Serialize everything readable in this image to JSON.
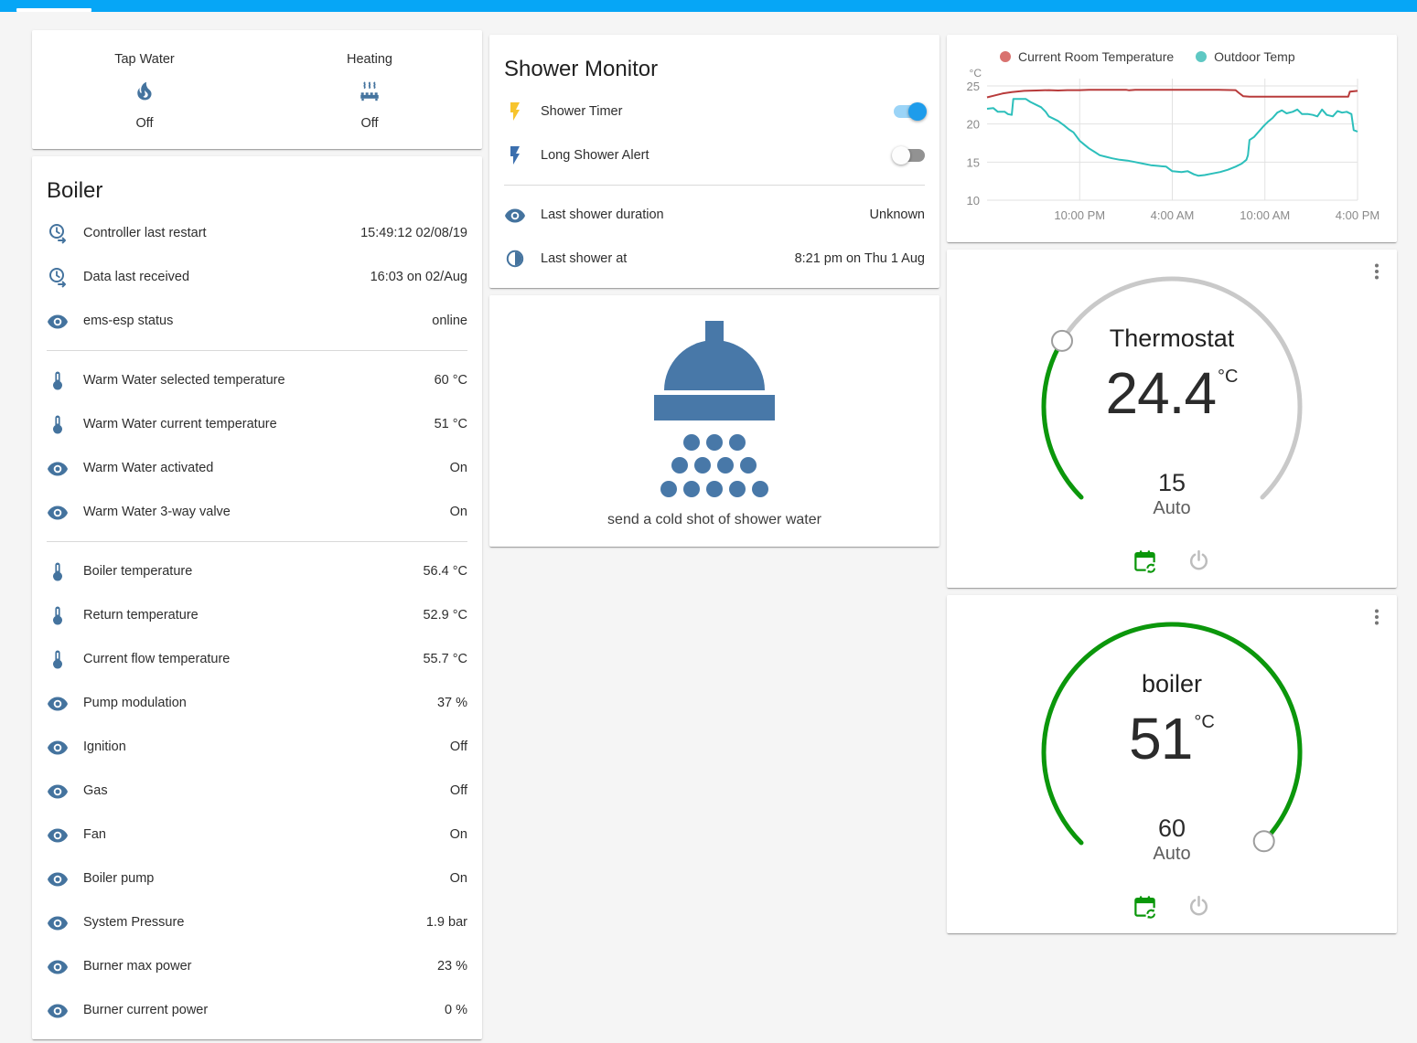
{
  "glance": {
    "items": [
      {
        "icon": "fire",
        "label": "Tap Water",
        "state": "Off"
      },
      {
        "icon": "radiator",
        "label": "Heating",
        "state": "Off"
      }
    ]
  },
  "boiler_card": {
    "title": "Boiler",
    "rows": [
      {
        "icon": "clock-start",
        "label": "Controller last restart",
        "value": "15:49:12 02/08/19"
      },
      {
        "icon": "clock-start",
        "label": "Data last received",
        "value": "16:03 on 02/Aug"
      },
      {
        "icon": "eye",
        "label": "ems-esp status",
        "value": "online"
      },
      {
        "icon": "thermometer",
        "label": "Warm Water selected temperature",
        "value": "60 °C"
      },
      {
        "icon": "thermometer",
        "label": "Warm Water current temperature",
        "value": "51 °C"
      },
      {
        "icon": "eye",
        "label": "Warm Water activated",
        "value": "On"
      },
      {
        "icon": "eye",
        "label": "Warm Water 3-way valve",
        "value": "On"
      },
      {
        "icon": "thermometer",
        "label": "Boiler temperature",
        "value": "56.4 °C"
      },
      {
        "icon": "thermometer",
        "label": "Return temperature",
        "value": "52.9 °C"
      },
      {
        "icon": "thermometer",
        "label": "Current flow temperature",
        "value": "55.7 °C"
      },
      {
        "icon": "eye",
        "label": "Pump modulation",
        "value": "37 %"
      },
      {
        "icon": "eye",
        "label": "Ignition",
        "value": "Off"
      },
      {
        "icon": "eye",
        "label": "Gas",
        "value": "Off"
      },
      {
        "icon": "eye",
        "label": "Fan",
        "value": "On"
      },
      {
        "icon": "eye",
        "label": "Boiler pump",
        "value": "On"
      },
      {
        "icon": "eye",
        "label": "System Pressure",
        "value": "1.9 bar"
      },
      {
        "icon": "eye",
        "label": "Burner max power",
        "value": "23 %"
      },
      {
        "icon": "eye",
        "label": "Burner current power",
        "value": "0 %"
      }
    ]
  },
  "shower_monitor": {
    "title": "Shower Monitor",
    "toggles": [
      {
        "icon": "flash-yellow",
        "label": "Shower Timer",
        "on": true
      },
      {
        "icon": "flash-blue",
        "label": "Long Shower Alert",
        "on": false
      }
    ],
    "rows": [
      {
        "icon": "eye",
        "label": "Last shower duration",
        "value": "Unknown"
      },
      {
        "icon": "moon",
        "label": "Last shower at",
        "value": "8:21 pm on Thu 1 Aug"
      }
    ]
  },
  "shower_card": {
    "caption": "send a cold shot of shower water"
  },
  "chart_data": {
    "type": "line",
    "title": "",
    "ylabel": "°C",
    "ylim": [
      10,
      25
    ],
    "y_ticks": [
      25,
      20,
      15,
      10
    ],
    "x_hours_range": [
      0,
      24
    ],
    "x_ticks": [
      {
        "t": 6,
        "label": "10:00 PM"
      },
      {
        "t": 12,
        "label": "4:00 AM"
      },
      {
        "t": 18,
        "label": "10:00 AM"
      },
      {
        "t": 24,
        "label": "4:00 PM"
      }
    ],
    "grid": true,
    "legend_position": "top",
    "series": [
      {
        "name": "Current Room Temperature",
        "color": "#b83b3b",
        "legend_dot": "#d9726f",
        "points": [
          [
            0,
            23.5
          ],
          [
            0.4,
            23.7
          ],
          [
            1,
            24.0
          ],
          [
            1.6,
            24.2
          ],
          [
            2.4,
            24.35
          ],
          [
            3.2,
            24.4
          ],
          [
            4,
            24.45
          ],
          [
            4.6,
            24.4
          ],
          [
            5.2,
            24.45
          ],
          [
            6,
            24.45
          ],
          [
            6.6,
            24.5
          ],
          [
            8,
            24.5
          ],
          [
            9,
            24.5
          ],
          [
            9.2,
            24.42
          ],
          [
            9.6,
            24.5
          ],
          [
            11,
            24.5
          ],
          [
            13,
            24.5
          ],
          [
            15,
            24.5
          ],
          [
            16.1,
            24.45
          ],
          [
            16.3,
            24.1
          ],
          [
            16.6,
            23.65
          ],
          [
            17,
            23.6
          ],
          [
            19,
            23.6
          ],
          [
            21,
            23.6
          ],
          [
            23.4,
            23.6
          ],
          [
            23.5,
            24.25
          ],
          [
            23.8,
            24.3
          ],
          [
            24,
            24.35
          ]
        ]
      },
      {
        "name": "Outdoor Temp",
        "color": "#2cbfbb",
        "legend_dot": "#5ec8c3",
        "points": [
          [
            0,
            22.0
          ],
          [
            0.4,
            22.1
          ],
          [
            0.7,
            21.6
          ],
          [
            1.15,
            21.6
          ],
          [
            1.35,
            21.3
          ],
          [
            1.6,
            21.2
          ],
          [
            1.7,
            23.3
          ],
          [
            2.5,
            23.3
          ],
          [
            2.8,
            22.9
          ],
          [
            3.2,
            22.5
          ],
          [
            3.5,
            22.2
          ],
          [
            3.8,
            21.6
          ],
          [
            4.0,
            21.0
          ],
          [
            4.3,
            20.7
          ],
          [
            4.6,
            20.4
          ],
          [
            5.0,
            19.8
          ],
          [
            5.3,
            19.3
          ],
          [
            5.6,
            18.9
          ],
          [
            6.0,
            17.8
          ],
          [
            6.3,
            17.3
          ],
          [
            6.6,
            16.8
          ],
          [
            7.0,
            16.3
          ],
          [
            7.3,
            15.9
          ],
          [
            7.7,
            15.7
          ],
          [
            8.1,
            15.5
          ],
          [
            8.6,
            15.3
          ],
          [
            9.1,
            15.2
          ],
          [
            9.6,
            15.0
          ],
          [
            10.1,
            14.8
          ],
          [
            10.6,
            14.6
          ],
          [
            11.1,
            14.5
          ],
          [
            11.6,
            14.4
          ],
          [
            12.0,
            13.8
          ],
          [
            12.6,
            13.7
          ],
          [
            13.0,
            13.8
          ],
          [
            13.4,
            13.4
          ],
          [
            13.7,
            13.2
          ],
          [
            14.1,
            13.3
          ],
          [
            14.6,
            13.5
          ],
          [
            15.1,
            13.7
          ],
          [
            15.6,
            14.0
          ],
          [
            16.1,
            14.4
          ],
          [
            16.5,
            14.8
          ],
          [
            16.8,
            15.3
          ],
          [
            16.9,
            15.9
          ],
          [
            17.0,
            17.9
          ],
          [
            17.3,
            18.3
          ],
          [
            17.6,
            19.0
          ],
          [
            17.9,
            19.7
          ],
          [
            18.2,
            20.3
          ],
          [
            18.5,
            20.8
          ],
          [
            18.8,
            21.5
          ],
          [
            19.1,
            21.8
          ],
          [
            19.4,
            21.4
          ],
          [
            19.8,
            21.6
          ],
          [
            20.1,
            21.9
          ],
          [
            20.4,
            21.3
          ],
          [
            20.8,
            21.3
          ],
          [
            21.1,
            21.2
          ],
          [
            21.4,
            21.0
          ],
          [
            21.7,
            21.9
          ],
          [
            22.0,
            21.2
          ],
          [
            22.4,
            21.0
          ],
          [
            22.7,
            21.7
          ],
          [
            23.0,
            21.5
          ],
          [
            23.3,
            21.6
          ],
          [
            23.6,
            21.3
          ],
          [
            23.75,
            19.2
          ],
          [
            24,
            19.0
          ]
        ]
      }
    ]
  },
  "gauges": {
    "thermostat": {
      "title": "Thermostat",
      "value": "24.4",
      "unit": "°C",
      "target": "15",
      "mode": "Auto",
      "arc_start": 135,
      "arc_end": 405,
      "arc_progress": 211,
      "progress_color": "#0b970b",
      "track_color": "#c9c9c9"
    },
    "boiler": {
      "title": "boiler",
      "value": "51",
      "unit": "°C",
      "target": "60",
      "mode": "Auto",
      "arc_start": 135,
      "arc_end": 405,
      "arc_progress": 404,
      "progress_color": "#0b970b",
      "track_color": "#c9c9c9"
    }
  },
  "colors": {
    "accent": "#06a6f6",
    "icon_blue": "#44739e",
    "toggle_on_knob": "#1e9ceb",
    "gauge_green": "#0b970b",
    "bolt_yellow": "#f7c42d",
    "bolt_blue": "#3b6fae",
    "shower_blue": "#4878a8"
  }
}
